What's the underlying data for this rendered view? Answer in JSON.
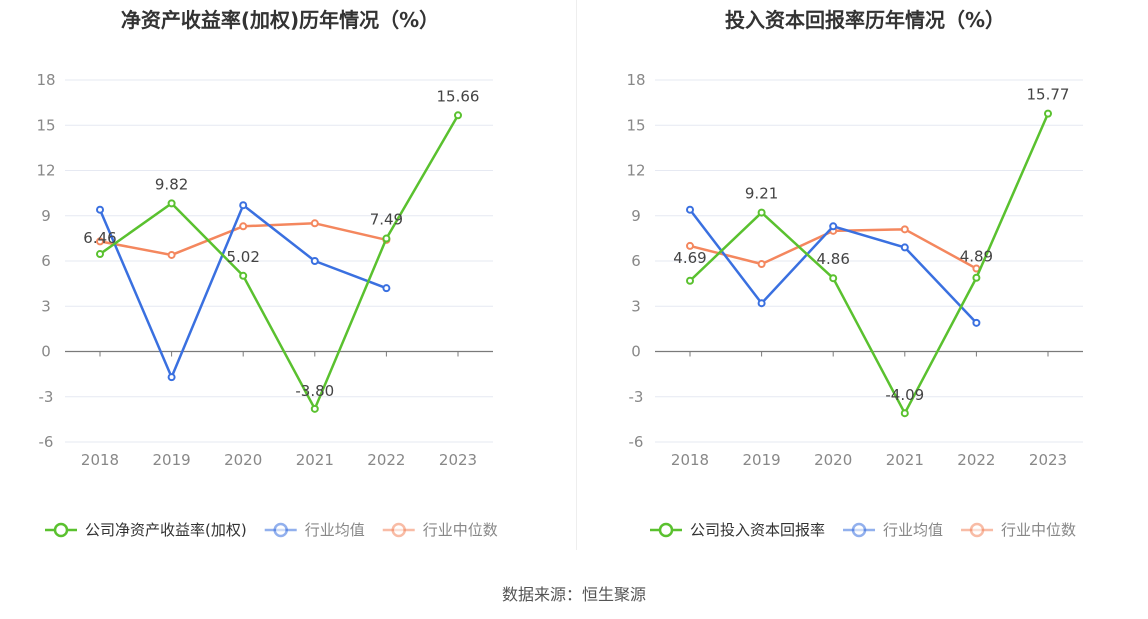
{
  "source": "数据来源：恒生聚源",
  "colors": {
    "company": "#5ac12f",
    "industry_avg": "#3a70e0",
    "industry_median": "#f4875e",
    "grid": "#e6e9f2",
    "zero_axis": "#7a7a7a",
    "axis_text": "#888888"
  },
  "chart_data": [
    {
      "type": "line",
      "title": "净资产收益率(加权)历年情况（%）",
      "categories": [
        "2018",
        "2019",
        "2020",
        "2021",
        "2022",
        "2023"
      ],
      "ylim": [
        -6,
        18
      ],
      "yticks": [
        -6,
        -3,
        0,
        3,
        6,
        9,
        12,
        15,
        18
      ],
      "grid": true,
      "legend_position": "bottom",
      "series": [
        {
          "name": "公司净资产收益率(加权)",
          "key": "company",
          "values": [
            6.46,
            9.82,
            5.02,
            -3.8,
            7.49,
            15.66
          ],
          "labels": [
            "6.46",
            "9.82",
            "5.02",
            "-3.80",
            "7.49",
            "15.66"
          ]
        },
        {
          "name": "行业均值",
          "key": "industry_avg",
          "values": [
            9.4,
            -1.7,
            9.7,
            6.0,
            4.2,
            null
          ]
        },
        {
          "name": "行业中位数",
          "key": "industry_median",
          "values": [
            7.3,
            6.4,
            8.3,
            8.5,
            7.4,
            null
          ]
        }
      ]
    },
    {
      "type": "line",
      "title": "投入资本回报率历年情况（%）",
      "categories": [
        "2018",
        "2019",
        "2020",
        "2021",
        "2022",
        "2023"
      ],
      "ylim": [
        -6,
        18
      ],
      "yticks": [
        -6,
        -3,
        0,
        3,
        6,
        9,
        12,
        15,
        18
      ],
      "grid": true,
      "legend_position": "bottom",
      "series": [
        {
          "name": "公司投入资本回报率",
          "key": "company",
          "values": [
            4.69,
            9.21,
            4.86,
            -4.09,
            4.89,
            15.77
          ],
          "labels": [
            "4.69",
            "9.21",
            "4.86",
            "-4.09",
            "4.89",
            "15.77"
          ]
        },
        {
          "name": "行业均值",
          "key": "industry_avg",
          "values": [
            9.4,
            3.2,
            8.3,
            6.9,
            1.9,
            null
          ]
        },
        {
          "name": "行业中位数",
          "key": "industry_median",
          "values": [
            7.0,
            5.8,
            8.0,
            8.1,
            5.5,
            null
          ]
        }
      ]
    }
  ]
}
